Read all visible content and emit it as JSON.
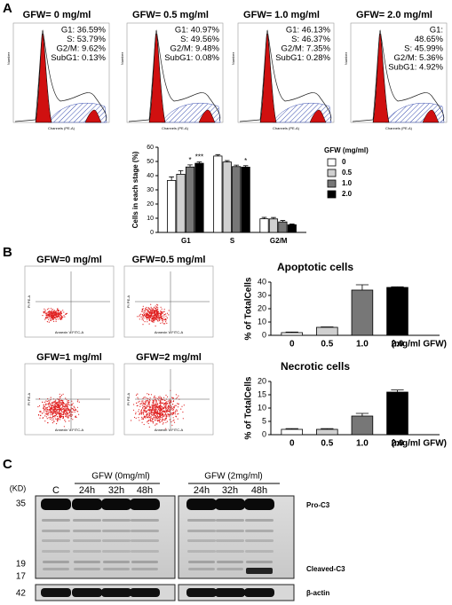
{
  "panel_labels": [
    "A",
    "B",
    "C"
  ],
  "histograms": [
    {
      "title": "GFW= 0 mg/ml",
      "stats": [
        "G1: 36.59%",
        "S: 53.79%",
        "G2/M: 9.62%",
        "SubG1: 0.13%"
      ]
    },
    {
      "title": "GFW= 0.5 mg/ml",
      "stats": [
        "G1: 40.97%",
        "S: 49.56%",
        "G2/M: 9.48%",
        "SubG1: 0.08%"
      ]
    },
    {
      "title": "GFW= 1.0 mg/ml",
      "stats": [
        "G1: 46.13%",
        "S: 46.37%",
        "G2/M: 7.35%",
        "SubG1: 0.28%"
      ]
    },
    {
      "title": "GFW= 2.0 mg/ml",
      "stats": [
        "G1:",
        "48.65%",
        "S: 45.99%",
        "G2/M: 5.36%",
        "SubG1: 4.92%"
      ]
    }
  ],
  "histogram_axis": {
    "x_label": "Channels (PE-A)",
    "y_label": "Number"
  },
  "dot_plots": [
    {
      "title": "GFW=0 mg/ml"
    },
    {
      "title": "GFW=0.5 mg/ml"
    },
    {
      "title": "GFW=1 mg/ml"
    },
    {
      "title": "GFW=2 mg/ml"
    }
  ],
  "dot_plot_axis": {
    "x_label": "Annexin V FITC-A",
    "y_label": "PI PE-A"
  },
  "chart_data": [
    {
      "type": "bar",
      "y_label": "Cells in each stage (%)",
      "categories": [
        "G1",
        "S",
        "G2/M"
      ],
      "ylim": [
        0,
        60
      ],
      "yticks": [
        0,
        10,
        20,
        30,
        40,
        50,
        60
      ],
      "legend": "right",
      "legend_title": "GFW (mg/ml)",
      "series": [
        {
          "name": "0",
          "color": "#ffffff",
          "values": [
            36.6,
            53.8,
            9.6
          ],
          "errors": [
            2.5,
            1,
            1
          ]
        },
        {
          "name": "0.5",
          "color": "#d0d0d0",
          "values": [
            41,
            49.6,
            9.5
          ],
          "errors": [
            2.5,
            1,
            1
          ]
        },
        {
          "name": "1.0",
          "color": "#777777",
          "values": [
            46.1,
            46.4,
            7.4
          ],
          "errors": [
            1.5,
            1,
            1
          ],
          "significance": [
            "*",
            null,
            null
          ]
        },
        {
          "name": "2.0",
          "color": "#000000",
          "values": [
            48.7,
            46,
            5.4
          ],
          "errors": [
            1,
            1,
            0.5
          ],
          "significance": [
            "***",
            "*",
            null
          ]
        }
      ]
    },
    {
      "type": "bar",
      "title": "Apoptotic cells",
      "y_label": "% of TotalCells",
      "x_label": "(mg/ml GFW)",
      "categories": [
        "0",
        "0.5",
        "1.0",
        "2.0"
      ],
      "values": [
        2,
        6,
        34,
        36
      ],
      "errors": [
        0.5,
        0.3,
        4,
        0.5
      ],
      "colors": [
        "#ffffff",
        "#d0d0d0",
        "#777777",
        "#000000"
      ],
      "ylim": [
        0,
        40
      ],
      "yticks": [
        0,
        10,
        20,
        30,
        40
      ]
    },
    {
      "type": "bar",
      "title": "Necrotic cells",
      "y_label": "% of TotalCells",
      "x_label": "(mg/ml GFW)",
      "categories": [
        "0",
        "0.5",
        "1.0",
        "2.0"
      ],
      "values": [
        2,
        2,
        7,
        16
      ],
      "errors": [
        0.3,
        0.3,
        1,
        0.8
      ],
      "colors": [
        "#ffffff",
        "#d0d0d0",
        "#777777",
        "#000000"
      ],
      "ylim": [
        0,
        20
      ],
      "yticks": [
        0,
        5,
        10,
        15,
        20
      ]
    }
  ],
  "western_blot": {
    "unit": "(KD)",
    "groups": [
      "GFW  (0mg/ml)",
      "GFW  (2mg/ml)"
    ],
    "lanes": [
      "C",
      "24h",
      "32h",
      "48h",
      "24h",
      "32h",
      "48h"
    ],
    "markers": [
      "35",
      "19",
      "17",
      "42"
    ],
    "bands": [
      "Pro-C3",
      "Cleaved-C3",
      "β-actin"
    ]
  }
}
